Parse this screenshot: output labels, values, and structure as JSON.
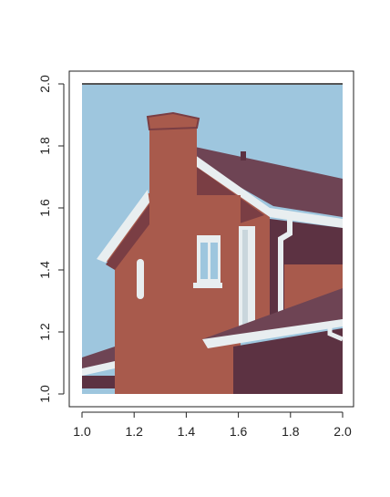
{
  "chart_data": {
    "type": "image",
    "xlim": [
      1.0,
      2.0
    ],
    "ylim": [
      1.0,
      2.0
    ],
    "x_ticks": [
      1.0,
      1.2,
      1.4,
      1.6,
      1.8,
      2.0
    ],
    "y_ticks": [
      1.0,
      1.2,
      1.4,
      1.6,
      1.8,
      2.0
    ],
    "x_tick_labels": [
      "1.0",
      "1.2",
      "1.4",
      "1.6",
      "1.8",
      "2.0"
    ],
    "y_tick_labels": [
      "1.0",
      "1.2",
      "1.4",
      "1.6",
      "1.8",
      "2.0"
    ],
    "title": "",
    "xlabel": "",
    "ylabel": "",
    "grid": false,
    "palette": {
      "sky": "#9ec6de",
      "brick": "#a85a4c",
      "roof": "#6e4454",
      "dark_wall": "#5c3242",
      "trim": "#e8eef0",
      "shadow": "#7a3e44"
    }
  }
}
